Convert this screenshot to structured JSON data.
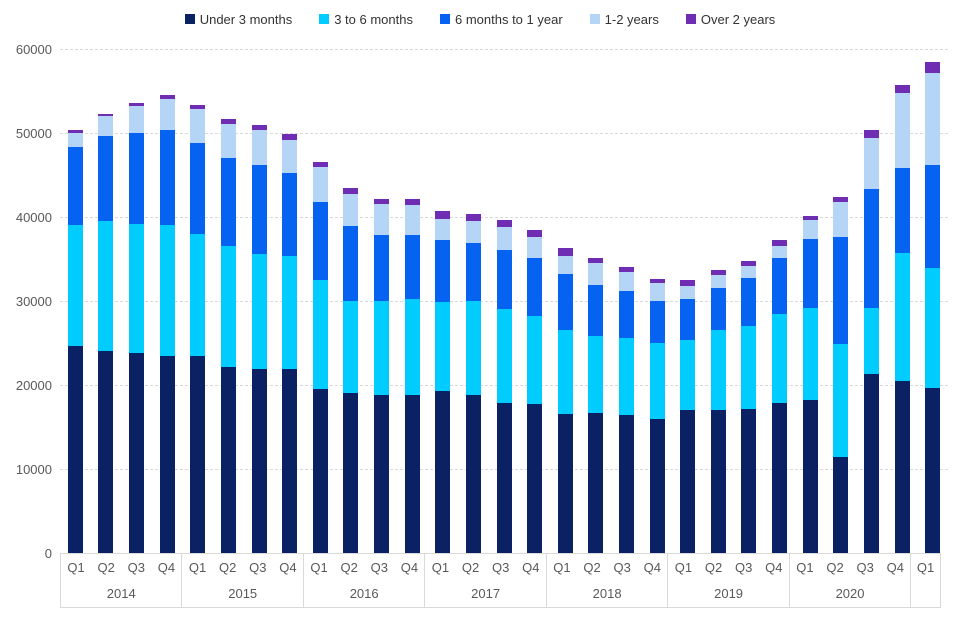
{
  "chart_data": {
    "type": "bar",
    "stacked": true,
    "title": "",
    "xlabel": "",
    "ylabel": "",
    "legend_position": "top-center",
    "grid": "horizontal-dashed",
    "y_axis": {
      "min": 0,
      "max": 60000,
      "step": 10000,
      "tick_labels": [
        "0",
        "10000",
        "20000",
        "30000",
        "40000",
        "50000",
        "60000"
      ]
    },
    "groups": [
      {
        "year": "2014",
        "quarters": [
          "Q1",
          "Q2",
          "Q3",
          "Q4"
        ]
      },
      {
        "year": "2015",
        "quarters": [
          "Q1",
          "Q2",
          "Q3",
          "Q4"
        ]
      },
      {
        "year": "2016",
        "quarters": [
          "Q1",
          "Q2",
          "Q3",
          "Q4"
        ]
      },
      {
        "year": "2017",
        "quarters": [
          "Q1",
          "Q2",
          "Q3",
          "Q4"
        ]
      },
      {
        "year": "2018",
        "quarters": [
          "Q1",
          "Q2",
          "Q3",
          "Q4"
        ]
      },
      {
        "year": "2019",
        "quarters": [
          "Q1",
          "Q2",
          "Q3",
          "Q4"
        ]
      },
      {
        "year": "2020",
        "quarters": [
          "Q1",
          "Q2",
          "Q3",
          "Q4"
        ]
      },
      {
        "year": "",
        "quarters": [
          "Q1"
        ]
      }
    ],
    "series": [
      {
        "name": "Under 3 months",
        "color": "#0A2263",
        "values": [
          24600,
          24000,
          23800,
          23400,
          23500,
          22100,
          21900,
          21900,
          19500,
          19000,
          18800,
          18800,
          19300,
          18800,
          17900,
          17700,
          16500,
          16700,
          16400,
          16000,
          17000,
          17000,
          17100,
          17900,
          18200,
          11400,
          21300,
          20500,
          19700
        ]
      },
      {
        "name": "3 to 6 months",
        "color": "#00CCFF",
        "values": [
          14500,
          15500,
          15400,
          15700,
          14500,
          14500,
          13700,
          13400,
          13000,
          11000,
          11200,
          11400,
          10600,
          11200,
          11200,
          10500,
          10000,
          9100,
          9200,
          9000,
          8300,
          9600,
          9900,
          10500,
          11000,
          13500,
          7900,
          15200,
          14200
        ]
      },
      {
        "name": "6 months to 1 year",
        "color": "#0663F2",
        "values": [
          9200,
          10100,
          10800,
          11300,
          10800,
          10400,
          10600,
          9900,
          9300,
          8900,
          7800,
          7700,
          7400,
          6900,
          7000,
          6900,
          6700,
          6100,
          5600,
          5000,
          4900,
          5000,
          5700,
          6700,
          8200,
          12700,
          14100,
          10100,
          12300
        ]
      },
      {
        "name": "1-2 years",
        "color": "#B5D5F6",
        "values": [
          1700,
          2400,
          3200,
          3700,
          4000,
          4100,
          4200,
          4000,
          4100,
          3800,
          3700,
          3500,
          2500,
          2600,
          2700,
          2500,
          2200,
          2600,
          2300,
          2100,
          1600,
          1500,
          1500,
          1500,
          2200,
          4200,
          6100,
          9000,
          10900
        ]
      },
      {
        "name": "Over 2 years",
        "color": "#6F2DB4",
        "values": [
          400,
          300,
          400,
          400,
          500,
          600,
          500,
          700,
          700,
          700,
          700,
          700,
          900,
          800,
          800,
          800,
          900,
          600,
          500,
          500,
          700,
          600,
          600,
          700,
          500,
          600,
          1000,
          900,
          1300
        ]
      }
    ]
  }
}
